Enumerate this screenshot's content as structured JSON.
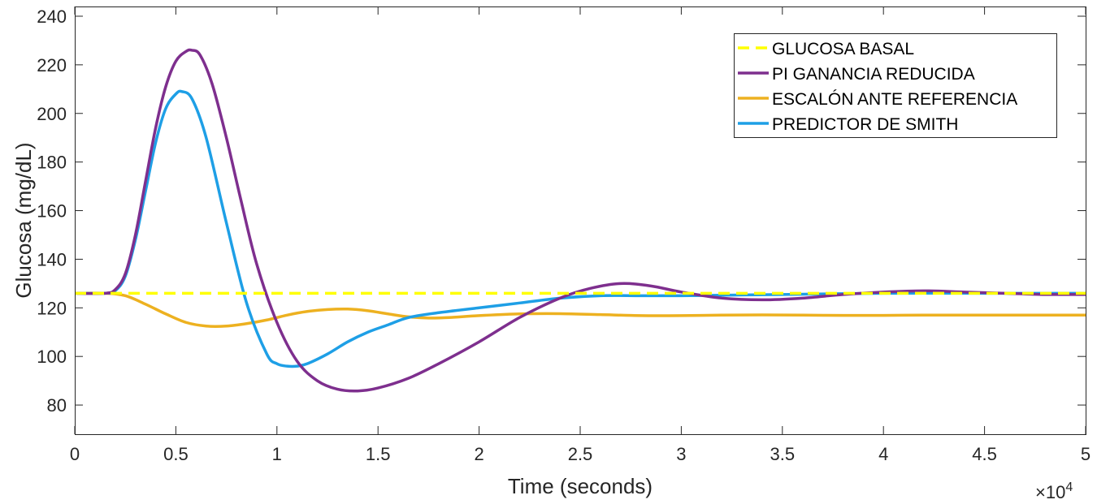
{
  "chart_data": {
    "type": "line",
    "title": "",
    "xlabel": "Time (seconds)",
    "ylabel": "Glucosa (mg/dL)",
    "x_exponent_label": "×10",
    "x_exponent_power": "4",
    "xlim": [
      0,
      50000
    ],
    "ylim": [
      68,
      244
    ],
    "x_ticks": [
      0,
      5000,
      10000,
      15000,
      20000,
      25000,
      30000,
      35000,
      40000,
      45000,
      50000
    ],
    "x_tick_labels": [
      "0",
      "0.5",
      "1",
      "1.5",
      "2",
      "2.5",
      "3",
      "3.5",
      "4",
      "4.5",
      "5"
    ],
    "y_ticks": [
      80,
      100,
      120,
      140,
      160,
      180,
      200,
      220,
      240
    ],
    "y_tick_labels": [
      "80",
      "100",
      "120",
      "140",
      "160",
      "180",
      "200",
      "220",
      "240"
    ],
    "grid": false,
    "legend_position": "top-right",
    "series": [
      {
        "name": "GLUCOSA BASAL",
        "color": "#FFFF00",
        "dashed": true,
        "x": [
          0,
          50000
        ],
        "y": [
          126,
          126
        ]
      },
      {
        "name": "PI GANANCIA REDUCIDA",
        "color": "#7E2F8E",
        "dashed": false,
        "x": [
          0,
          1500,
          2000,
          2500,
          3000,
          3500,
          4000,
          4500,
          5000,
          5500,
          5800,
          6200,
          6800,
          7500,
          8200,
          9000,
          10000,
          11000,
          12000,
          13000,
          14000,
          15000,
          16500,
          18000,
          20000,
          22000,
          24000,
          25500,
          27000,
          28500,
          30000,
          32000,
          34000,
          36000,
          38000,
          40000,
          42000,
          44000,
          46000,
          48000,
          50000
        ],
        "y": [
          126,
          126,
          127.5,
          134,
          150,
          172,
          194,
          211,
          221.5,
          225.5,
          226,
          224,
          212,
          190,
          165,
          138,
          114,
          98,
          90,
          86.5,
          85.8,
          87,
          91,
          97,
          106,
          116,
          124,
          128,
          130,
          129,
          126.5,
          124,
          123.3,
          124,
          125.5,
          126.5,
          127,
          126.5,
          126,
          125.5,
          125.5
        ]
      },
      {
        "name": "ESCALÓN ANTE REFERENCIA",
        "color": "#EDB120",
        "dashed": false,
        "x": [
          0,
          1500,
          2500,
          3500,
          4500,
          5500,
          6500,
          7500,
          8500,
          9500,
          10500,
          11500,
          12500,
          13500,
          14500,
          15500,
          16500,
          17500,
          18500,
          20000,
          22000,
          24000,
          26000,
          28000,
          30000,
          32000,
          34000,
          36000,
          38000,
          40000,
          42000,
          44000,
          46000,
          48000,
          50000
        ],
        "y": [
          126,
          126,
          125,
          121.5,
          117.5,
          114,
          112.5,
          112.5,
          113.5,
          115,
          117,
          118.5,
          119.3,
          119.5,
          118.8,
          117.5,
          116.3,
          115.8,
          116,
          116.8,
          117.5,
          117.6,
          117.2,
          116.8,
          116.8,
          117,
          117.1,
          117,
          116.9,
          116.9,
          117,
          117,
          117,
          117,
          117
        ]
      },
      {
        "name": "PREDICTOR DE SMITH",
        "color": "#1E9FE6",
        "dashed": false,
        "x": [
          0,
          1500,
          2000,
          2500,
          3000,
          3500,
          4000,
          4500,
          5000,
          5300,
          5800,
          6500,
          7500,
          8500,
          9500,
          10000,
          10500,
          11000,
          11500,
          12500,
          13500,
          14500,
          15500,
          16500,
          18000,
          20000,
          22000,
          24000,
          26000,
          28000,
          30000,
          35000,
          40000,
          45000,
          50000
        ],
        "y": [
          126,
          126,
          127,
          133,
          148,
          168,
          188,
          202,
          208,
          209,
          206,
          190,
          155,
          122,
          101,
          97,
          96,
          96,
          97,
          101,
          106,
          110,
          113,
          116,
          118,
          120,
          122,
          124,
          125,
          125,
          125,
          125.5,
          126,
          126,
          126
        ]
      }
    ]
  }
}
